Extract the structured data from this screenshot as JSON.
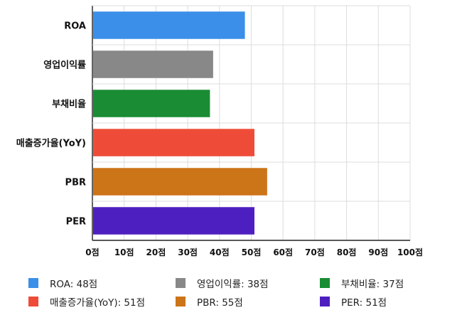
{
  "chart_data": {
    "type": "bar",
    "orientation": "horizontal",
    "title": "",
    "xlabel": "",
    "ylabel": "",
    "xlim": [
      0,
      100
    ],
    "x_ticks": [
      "0점",
      "10점",
      "20점",
      "30점",
      "40점",
      "50점",
      "60점",
      "70점",
      "80점",
      "90점",
      "100점"
    ],
    "grid": true,
    "categories": [
      "ROA",
      "영업이익률",
      "부채비율",
      "매출증가율(YoY)",
      "PBR",
      "PER"
    ],
    "values": [
      48,
      38,
      37,
      51,
      55,
      51
    ],
    "colors": [
      "#3b8fe8",
      "#888888",
      "#1a8c34",
      "#ee4c38",
      "#cc7418",
      "#4e1fc0"
    ],
    "legend_position": "bottom",
    "legend_entries": [
      "ROA: 48점",
      "영업이익률: 38점",
      "부채비율: 37점",
      "매출증가율(YoY): 51점",
      "PBR: 55점",
      "PER: 51점"
    ]
  }
}
